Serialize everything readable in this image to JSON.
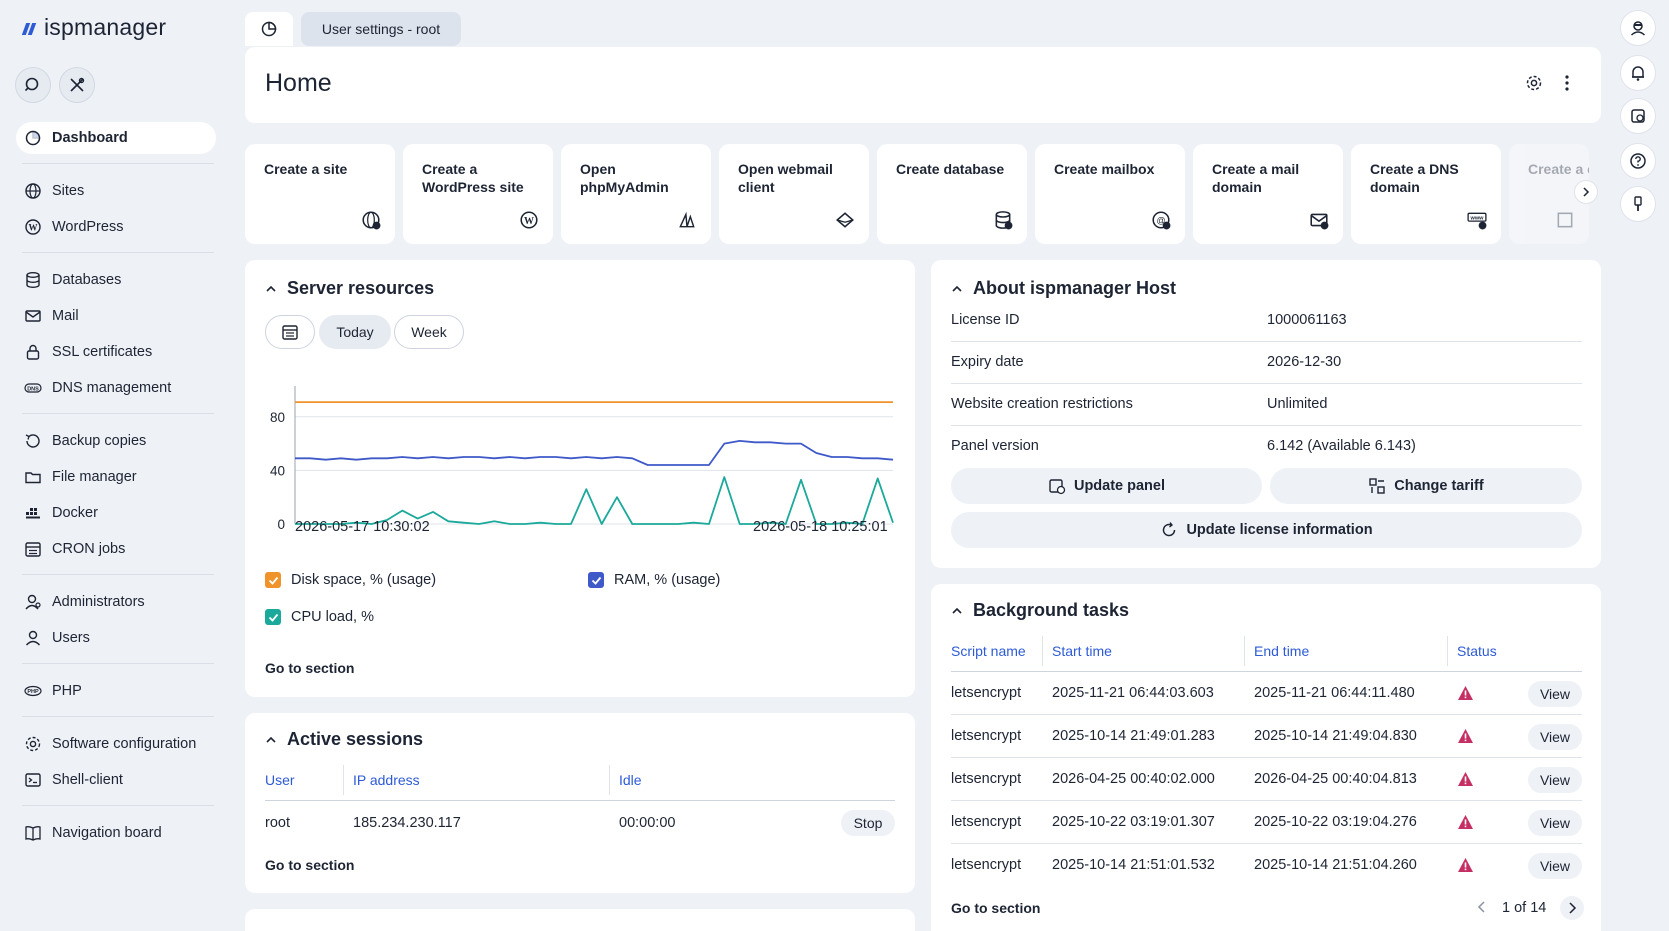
{
  "app": {
    "logo": "ispmanager"
  },
  "tabs": {
    "home_icon": "dashboard-icon",
    "user_settings": "User settings - root"
  },
  "sidebar": {
    "items": [
      {
        "label": "Dashboard",
        "icon": "dashboard-icon"
      },
      {
        "label": "Sites",
        "icon": "globe-icon"
      },
      {
        "label": "WordPress",
        "icon": "wordpress-icon"
      },
      {
        "label": "Databases",
        "icon": "database-icon"
      },
      {
        "label": "Mail",
        "icon": "mail-icon"
      },
      {
        "label": "SSL certificates",
        "icon": "lock-icon"
      },
      {
        "label": "DNS management",
        "icon": "dns-icon"
      },
      {
        "label": "Backup copies",
        "icon": "backup-icon"
      },
      {
        "label": "File manager",
        "icon": "folder-icon"
      },
      {
        "label": "Docker",
        "icon": "docker-icon"
      },
      {
        "label": "CRON jobs",
        "icon": "calendar-icon"
      },
      {
        "label": "Administrators",
        "icon": "admin-icon"
      },
      {
        "label": "Users",
        "icon": "user-icon"
      },
      {
        "label": "PHP",
        "icon": "php-icon"
      },
      {
        "label": "Software configuration",
        "icon": "gear-icon"
      },
      {
        "label": "Shell-client",
        "icon": "terminal-icon"
      },
      {
        "label": "Navigation board",
        "icon": "book-icon"
      }
    ]
  },
  "home": {
    "title": "Home"
  },
  "quick_actions": [
    {
      "label": "Create a site",
      "icon": "globe-plus-icon"
    },
    {
      "label": "Create a WordPress site",
      "icon": "wordpress-icon"
    },
    {
      "label": "Open phpMyAdmin",
      "icon": "phpmyadmin-icon"
    },
    {
      "label": "Open webmail client",
      "icon": "webmail-icon"
    },
    {
      "label": "Create database",
      "icon": "database-plus-icon"
    },
    {
      "label": "Create mailbox",
      "icon": "mailbox-plus-icon"
    },
    {
      "label": "Create a mail domain",
      "icon": "mail-plus-icon"
    },
    {
      "label": "Create a DNS domain",
      "icon": "www-plus-icon"
    },
    {
      "label": "Create a cont",
      "icon": "container-icon"
    }
  ],
  "server_resources": {
    "title": "Server resources",
    "today": "Today",
    "week": "Week",
    "legend": [
      "Disk space, % (usage)",
      "RAM, % (usage)",
      "CPU load, %"
    ],
    "go_to_section": "Go to section",
    "colors": {
      "disk": "#f0932b",
      "ram": "#3f59c9",
      "cpu": "#1aa99a"
    }
  },
  "chart_data": {
    "type": "line",
    "x_start": "2026-05-17 10:30:02",
    "x_end": "2026-05-18 10:25:01",
    "yticks": [
      "80",
      "40",
      "0"
    ],
    "ylim": [
      0,
      100
    ],
    "series": [
      {
        "name": "Disk space, % (usage)",
        "values": [
          91,
          91,
          91,
          91,
          91,
          91,
          91,
          91,
          91,
          91,
          91,
          91,
          91,
          91,
          91,
          91,
          91,
          91,
          91,
          91,
          91,
          91,
          91,
          91,
          91,
          91,
          91,
          91,
          91,
          91,
          91,
          91,
          91,
          91,
          91,
          91,
          91,
          91,
          91,
          91
        ]
      },
      {
        "name": "RAM, % (usage)",
        "values": [
          49,
          49,
          48,
          49,
          48,
          49,
          49,
          50,
          49,
          50,
          49,
          50,
          50,
          49,
          50,
          49,
          50,
          50,
          49,
          50,
          49,
          50,
          49,
          44,
          44,
          44,
          44,
          44,
          60,
          62,
          61,
          61,
          60,
          60,
          53,
          50,
          50,
          49,
          49,
          48
        ]
      },
      {
        "name": "CPU load, %",
        "values": [
          0,
          0,
          0,
          0,
          1,
          0,
          3,
          10,
          4,
          9,
          2,
          1,
          0,
          2,
          0,
          0,
          1,
          0,
          0,
          26,
          0,
          20,
          0,
          0,
          0,
          0,
          1,
          0,
          35,
          0,
          0,
          1,
          0,
          33,
          0,
          0,
          1,
          0,
          34,
          1
        ]
      }
    ]
  },
  "active_sessions": {
    "title": "Active sessions",
    "headers": [
      "User",
      "IP address",
      "Idle"
    ],
    "rows": [
      {
        "user": "root",
        "ip": "185.234.230.117",
        "idle": "00:00:00",
        "action": "Stop"
      }
    ],
    "go_to_section": "Go to section"
  },
  "about": {
    "title": "About ispmanager Host",
    "rows": [
      {
        "key": "License ID",
        "value": "1000061163"
      },
      {
        "key": "Expiry date",
        "value": "2026-12-30"
      },
      {
        "key": "Website creation restrictions",
        "value": "Unlimited"
      },
      {
        "key": "Panel version",
        "value": "6.142 (Available 6.143)"
      }
    ],
    "update_panel": "Update panel",
    "change_tariff": "Change tariff",
    "update_license": "Update license information"
  },
  "background_tasks": {
    "title": "Background tasks",
    "headers": [
      "Script name",
      "Start time",
      "End time",
      "Status"
    ],
    "rows": [
      {
        "script": "letsencrypt",
        "start": "2025-11-21 06:44:03.603",
        "end": "2025-11-21 06:44:11.480",
        "action": "View"
      },
      {
        "script": "letsencrypt",
        "start": "2025-10-14 21:49:01.283",
        "end": "2025-10-14 21:49:04.830",
        "action": "View"
      },
      {
        "script": "letsencrypt",
        "start": "2026-04-25 00:40:02.000",
        "end": "2026-04-25 00:40:04.813",
        "action": "View"
      },
      {
        "script": "letsencrypt",
        "start": "2025-10-22 03:19:01.307",
        "end": "2025-10-22 03:19:04.276",
        "action": "View"
      },
      {
        "script": "letsencrypt",
        "start": "2025-10-14 21:51:01.532",
        "end": "2025-10-14 21:51:04.260",
        "action": "View"
      }
    ],
    "go_to_section": "Go to section",
    "pagination": "1 of 14"
  }
}
